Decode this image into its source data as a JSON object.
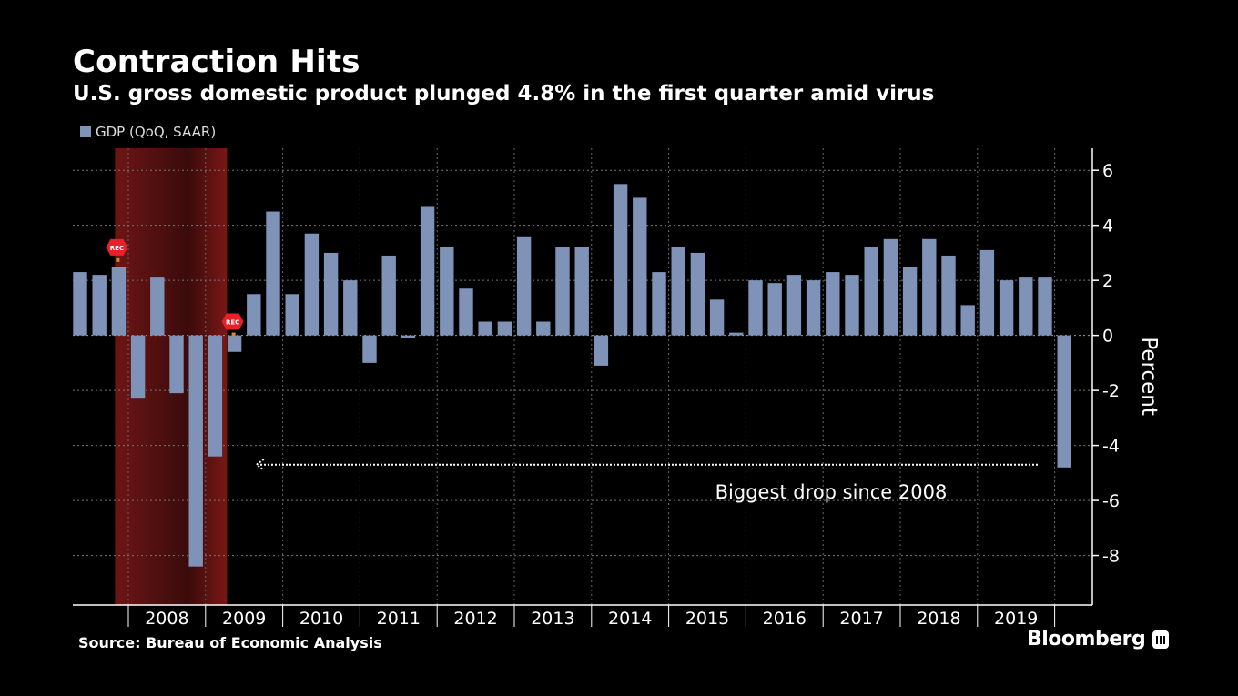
{
  "chart_data": {
    "type": "bar",
    "title": "Contraction Hits",
    "subtitle": "U.S. gross domestic product plunged 4.8% in the first quarter amid virus",
    "ylabel": "Percent",
    "ylim": [
      -9.8,
      6.8
    ],
    "yticks": [
      6,
      4,
      2,
      0,
      -2,
      -4,
      -6,
      -8
    ],
    "ytick_labels": [
      "6",
      "4",
      "2",
      "0",
      "-2",
      "-4",
      "-6",
      "-8"
    ],
    "legend": "top-left",
    "grid": true,
    "series": [
      {
        "name": "GDP (QoQ, SAAR)",
        "color": "#7f93b9",
        "values": [
          2.3,
          2.2,
          2.5,
          -2.3,
          2.1,
          -2.1,
          -8.4,
          -4.4,
          -0.6,
          1.5,
          4.5,
          1.5,
          3.7,
          3.0,
          2.0,
          -1.0,
          2.9,
          -0.1,
          4.7,
          3.2,
          1.7,
          0.5,
          0.5,
          3.6,
          0.5,
          3.2,
          3.2,
          -1.1,
          5.5,
          5.0,
          2.3,
          3.2,
          3.0,
          1.3,
          0.1,
          2.0,
          1.9,
          2.2,
          2.0,
          2.3,
          2.2,
          3.2,
          3.5,
          2.5,
          3.5,
          2.9,
          1.1,
          3.1,
          2.0,
          2.1,
          2.1,
          -4.8
        ]
      }
    ],
    "x_start": "2007 Q2",
    "year_labels": [
      "2008",
      "2009",
      "2010",
      "2011",
      "2012",
      "2013",
      "2014",
      "2015",
      "2016",
      "2017",
      "2018",
      "2019"
    ],
    "year_first_index": [
      3,
      7,
      11,
      15,
      19,
      23,
      27,
      31,
      35,
      39,
      43,
      47
    ],
    "recession": {
      "start_index": 2,
      "end_index": 7,
      "color": "#8b1a1a"
    },
    "recession_markers": [
      {
        "label": "REC",
        "index": 2,
        "value": 3.2
      },
      {
        "label": "REC",
        "index": 8,
        "value": 0.5
      }
    ],
    "annotation": {
      "text": "Biggest drop since 2008",
      "arrow_from_index": 50,
      "arrow_to_index": 9,
      "arrow_value": -4.7,
      "text_value": -5.7
    }
  },
  "legend": {
    "label": "GDP (QoQ, SAAR)"
  },
  "source": "Source: Bureau of Economic Analysis",
  "brand": "Bloomberg"
}
